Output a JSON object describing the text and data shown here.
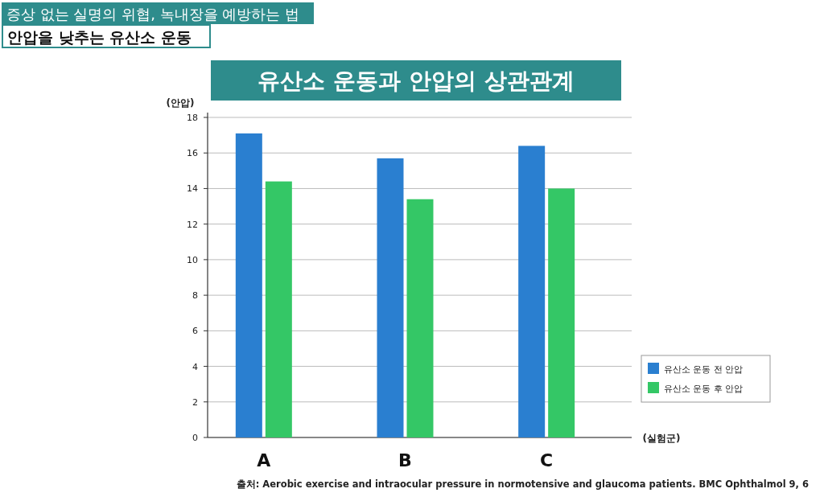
{
  "chart_data": {
    "type": "bar",
    "title": "유산소 운동과 안압의 상관관계",
    "ylabel": "(안압)",
    "xlabel": "(실험군)",
    "categories": [
      "A",
      "B",
      "C"
    ],
    "series": [
      {
        "name": "유산소 운동 전 안압",
        "color": "#2a7fd0",
        "values": [
          17.1,
          15.7,
          16.4
        ]
      },
      {
        "name": "유산소 운동 후 안압",
        "color": "#34c766",
        "values": [
          14.4,
          13.4,
          14.0
        ]
      }
    ],
    "ylim": [
      0,
      18
    ],
    "yticks": [
      0,
      2,
      4,
      6,
      8,
      10,
      12,
      14,
      16,
      18
    ],
    "grid": "y",
    "legend": "bottom right",
    "annotations": [
      "증상 없는 실명의 위협, 녹내장을 예방하는 법",
      "안압을 낮추는 유산소 운동",
      "출처: Aerobic exercise and intraocular pressure in normotensive and glaucoma patients. BMC Ophthalmol 9, 6"
    ]
  }
}
